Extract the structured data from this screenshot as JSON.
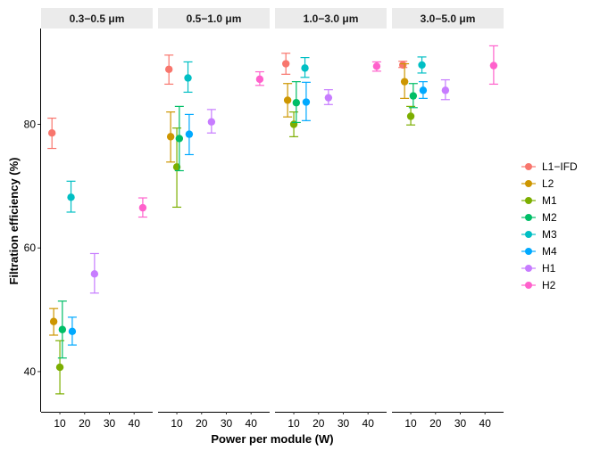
{
  "chart_data": {
    "type": "scatter",
    "subtype": "faceted-point-errorbar",
    "title": "",
    "xlabel": "Power per module (W)",
    "ylabel": "Filtration efficiency (%)",
    "xlim": [
      2.4,
      47.5
    ],
    "ylim": [
      33.5,
      95.5
    ],
    "xticks": [
      10,
      20,
      30,
      40
    ],
    "yticks": [
      40,
      60,
      80
    ],
    "grid": false,
    "legend_position": "right",
    "facets": [
      "0.3−0.5 μm",
      "0.5−1.0 μm",
      "1.0−3.0 μm",
      "3.0−5.0 μm"
    ],
    "series": [
      {
        "name": "L1−IFD",
        "color": "#F8766D",
        "x": 6.8,
        "values": [
          78.6,
          88.9,
          89.8,
          89.6
        ],
        "lower": [
          76.1,
          86.5,
          88.1,
          89.2
        ],
        "upper": [
          81.0,
          91.2,
          91.5,
          90.2
        ]
      },
      {
        "name": "L2",
        "color": "#CD9600",
        "x": 7.5,
        "values": [
          48.1,
          78.0,
          83.9,
          86.9
        ],
        "lower": [
          45.9,
          73.9,
          81.2,
          84.2
        ],
        "upper": [
          50.2,
          82.0,
          86.6,
          89.8
        ]
      },
      {
        "name": "M1",
        "color": "#7CAE00",
        "x": 10.0,
        "values": [
          40.7,
          73.1,
          80.0,
          81.3
        ],
        "lower": [
          36.4,
          66.6,
          78.0,
          79.9
        ],
        "upper": [
          45.0,
          79.4,
          82.0,
          82.9
        ]
      },
      {
        "name": "M2",
        "color": "#00BE67",
        "x": 11.0,
        "values": [
          46.8,
          77.7,
          83.5,
          84.6
        ],
        "lower": [
          42.2,
          72.5,
          80.3,
          82.7
        ],
        "upper": [
          51.4,
          82.9,
          86.9,
          86.6
        ]
      },
      {
        "name": "M3",
        "color": "#00BFC4",
        "x": 14.5,
        "values": [
          68.2,
          87.5,
          89.1,
          89.6
        ],
        "lower": [
          65.8,
          85.2,
          87.6,
          88.3
        ],
        "upper": [
          70.8,
          90.1,
          90.8,
          90.9
        ]
      },
      {
        "name": "M4",
        "color": "#00A9FF",
        "x": 15.0,
        "values": [
          46.5,
          78.4,
          83.6,
          85.5
        ],
        "lower": [
          44.3,
          75.1,
          80.6,
          84.2
        ],
        "upper": [
          48.8,
          81.6,
          86.8,
          86.9
        ]
      },
      {
        "name": "H1",
        "color": "#C77CFF",
        "x": 24.0,
        "values": [
          55.8,
          80.4,
          84.3,
          85.5
        ],
        "lower": [
          52.7,
          78.6,
          83.2,
          84.0
        ],
        "upper": [
          59.1,
          82.4,
          85.6,
          87.2
        ]
      },
      {
        "name": "H2",
        "color": "#FF61CC",
        "x": 43.5,
        "values": [
          66.5,
          87.3,
          89.4,
          89.5
        ],
        "lower": [
          65.0,
          86.3,
          88.6,
          86.5
        ],
        "upper": [
          68.1,
          88.5,
          90.1,
          92.7
        ]
      }
    ]
  }
}
